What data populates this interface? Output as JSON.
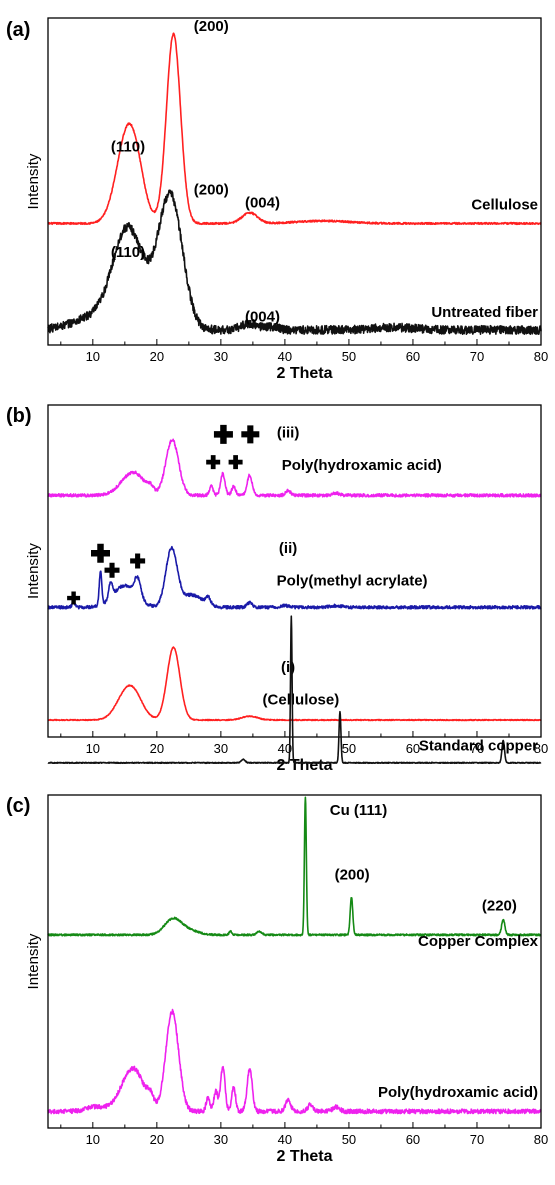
{
  "chart_data": [
    {
      "panel": "(a)",
      "type": "line",
      "xlabel": "2 Theta",
      "ylabel": "Intensity",
      "xlim": [
        3,
        80
      ],
      "xticks": [
        10,
        20,
        30,
        40,
        50,
        60,
        70,
        80
      ],
      "series": [
        {
          "name": "Cellulose",
          "color": "#ff2020",
          "offset": 0.55,
          "baseline": 0.015,
          "peaks": [
            [
              14.9,
              0.28,
              1.6
            ],
            [
              16.5,
              0.25,
              1.5
            ],
            [
              22.6,
              0.88,
              1.1
            ],
            [
              34.5,
              0.05,
              1.2
            ],
            [
              46,
              0.012,
              4
            ]
          ],
          "noise": 0.004
        },
        {
          "name": "Untreated fiber",
          "color": "#111111",
          "offset": 0.05,
          "baseline": 0.02,
          "peaks": [
            [
              15.0,
              0.28,
              2.2
            ],
            [
              16.5,
              0.2,
              2.4
            ],
            [
              22.1,
              0.62,
              1.9
            ],
            [
              10.5,
              0.06,
              3.5
            ],
            [
              34.5,
              0.03,
              1.3
            ],
            [
              38,
              0.015,
              1
            ],
            [
              57,
              0.012,
              3
            ]
          ],
          "noise": 0.02
        }
      ],
      "annotations": [
        {
          "text": "(110)",
          "x": 15.5,
          "y": 0.9
        },
        {
          "text": "(200)",
          "x": 28.5,
          "y": 1.46
        },
        {
          "text": "(004)",
          "x": 36.5,
          "y": 0.64
        },
        {
          "text": "(110)",
          "x": 15.5,
          "y": 0.41
        },
        {
          "text": "(200)",
          "x": 28.5,
          "y": 0.7
        },
        {
          "text": "(004)",
          "x": 36.5,
          "y": 0.11
        }
      ]
    },
    {
      "panel": "(b)",
      "type": "line",
      "xlabel": "2 Theta",
      "ylabel": "Intensity",
      "xlim": [
        3,
        80
      ],
      "xticks": [
        10,
        20,
        30,
        40,
        50,
        60,
        70,
        80
      ],
      "series": [
        {
          "name": "(iii) Poly(hydroxamic acid)",
          "color": "#ee22ee",
          "offset": 1.55,
          "baseline": 0.015,
          "peaks": [
            [
              15.5,
              0.09,
              1.6
            ],
            [
              17,
              0.08,
              1.4
            ],
            [
              19,
              0.04,
              0.5
            ],
            [
              22.4,
              0.36,
              1.0
            ],
            [
              28.5,
              0.06,
              0.3
            ],
            [
              30.3,
              0.14,
              0.35
            ],
            [
              32,
              0.06,
              0.3
            ],
            [
              34.5,
              0.13,
              0.4
            ],
            [
              40.5,
              0.03,
              0.4
            ],
            [
              48,
              0.015,
              0.5
            ]
          ],
          "noise": 0.01
        },
        {
          "name": "(ii) Poly(methyl acrylate)",
          "color": "#1a1aa8",
          "offset": 0.82,
          "baseline": 0.02,
          "peaks": [
            [
              7,
              0.03,
              0.25
            ],
            [
              11.2,
              0.22,
              0.2
            ],
            [
              12.8,
              0.1,
              0.3
            ],
            [
              15,
              0.14,
              1.8
            ],
            [
              17,
              0.12,
              0.5
            ],
            [
              22.3,
              0.38,
              0.9
            ],
            [
              25.5,
              0.08,
              1.5
            ],
            [
              28,
              0.05,
              0.4
            ],
            [
              34.5,
              0.03,
              0.4
            ],
            [
              40,
              0.012,
              0.5
            ],
            [
              48,
              0.01,
              1
            ]
          ],
          "noise": 0.01
        },
        {
          "name": "(i) (Cellulose)",
          "color": "#ff2020",
          "offset": 0.1,
          "baseline": 0.01,
          "peaks": [
            [
              15.0,
              0.14,
              1.5
            ],
            [
              16.6,
              0.12,
              1.4
            ],
            [
              22.6,
              0.47,
              1.0
            ],
            [
              34.5,
              0.025,
              1.2
            ]
          ],
          "noise": 0.003
        }
      ],
      "series_labels": [
        {
          "text": "(iii)",
          "x": 40.5,
          "y": 1.94
        },
        {
          "text": "Poly(hydroxamic acid)",
          "x": 52,
          "y": 1.73
        },
        {
          "text": "(ii)",
          "x": 40.5,
          "y": 1.19
        },
        {
          "text": "Poly(methyl acrylate)",
          "x": 50.5,
          "y": 0.98
        },
        {
          "text": "(i)",
          "x": 40.5,
          "y": 0.42
        },
        {
          "text": "(Cellulose)",
          "x": 42.5,
          "y": 0.21
        }
      ],
      "markers": [
        {
          "text": "+",
          "x": 7,
          "y": 0.9,
          "size": 13
        },
        {
          "text": "+",
          "x": 11.2,
          "y": 1.19,
          "size": 19
        },
        {
          "text": "+",
          "x": 13,
          "y": 1.08,
          "size": 15
        },
        {
          "text": "+",
          "x": 17,
          "y": 1.14,
          "size": 15
        },
        {
          "text": "+",
          "x": 28.8,
          "y": 1.78,
          "size": 14
        },
        {
          "text": "+",
          "x": 30.4,
          "y": 1.96,
          "size": 19
        },
        {
          "text": "+",
          "x": 32.3,
          "y": 1.78,
          "size": 14
        },
        {
          "text": "+",
          "x": 34.6,
          "y": 1.96,
          "size": 18
        }
      ]
    },
    {
      "panel": "(c)",
      "type": "line",
      "xlabel": "2 Theta",
      "ylabel": "Intensity",
      "xlim": [
        3,
        80
      ],
      "xticks": [
        10,
        20,
        30,
        40,
        50,
        60,
        70,
        80
      ],
      "series": [
        {
          "name": "Standard copper",
          "color": "#111111",
          "offset": 1.64,
          "baseline": 0.005,
          "peaks": [
            [
              33.5,
              0.015,
              0.3
            ],
            [
              41.0,
              0.66,
              0.12
            ],
            [
              48.6,
              0.23,
              0.15
            ],
            [
              74.1,
              0.1,
              0.2
            ]
          ],
          "noise": 0.002
        },
        {
          "name": "Copper Complex",
          "color": "#158a15",
          "offset": 0.86,
          "baseline": 0.01,
          "peaks": [
            [
              22.5,
              0.07,
              1.3
            ],
            [
              25,
              0.02,
              1.5
            ],
            [
              31.5,
              0.015,
              0.2
            ],
            [
              36,
              0.015,
              0.4
            ],
            [
              43.2,
              0.62,
              0.15
            ],
            [
              50.4,
              0.17,
              0.2
            ],
            [
              74.1,
              0.07,
              0.25
            ]
          ],
          "noise": 0.004
        },
        {
          "name": "Poly(hydroxamic acid)",
          "color": "#ee22ee",
          "offset": 0.06,
          "baseline": 0.015,
          "peaks": [
            [
              10.5,
              0.02,
              1.5
            ],
            [
              15.5,
              0.12,
              1.6
            ],
            [
              17,
              0.1,
              1.4
            ],
            [
              19,
              0.05,
              0.5
            ],
            [
              22.4,
              0.45,
              1.0
            ],
            [
              28,
              0.06,
              0.3
            ],
            [
              29.2,
              0.09,
              0.3
            ],
            [
              30.3,
              0.2,
              0.35
            ],
            [
              32,
              0.11,
              0.3
            ],
            [
              34.5,
              0.19,
              0.4
            ],
            [
              40.5,
              0.05,
              0.4
            ],
            [
              44,
              0.03,
              0.4
            ],
            [
              48,
              0.02,
              0.5
            ]
          ],
          "noise": 0.01
        }
      ],
      "annotations": [
        {
          "text": "Cu (111)",
          "x": 51.5,
          "y": 1.41
        },
        {
          "text": "(200)",
          "x": 50.5,
          "y": 1.12
        },
        {
          "text": "(220)",
          "x": 73.5,
          "y": 0.98
        }
      ]
    }
  ]
}
